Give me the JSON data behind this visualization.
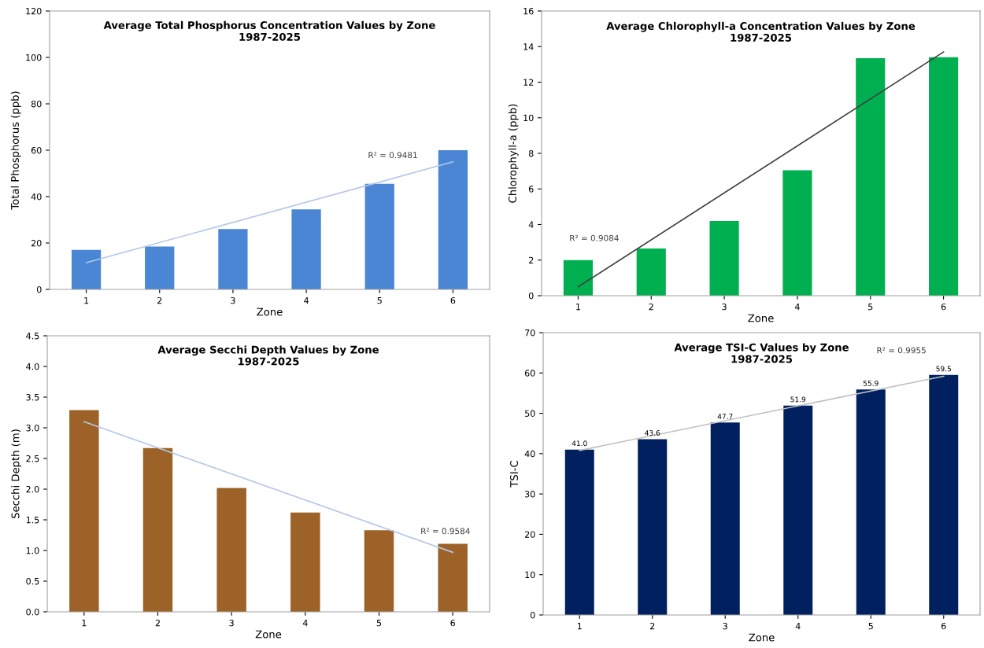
{
  "chart_data": [
    {
      "type": "bar",
      "title": "Average Total Phosphorus Concentration Values by Zone\n1987-2025",
      "xlabel": "Zone",
      "ylabel": "Total Phosphorus (ppb)",
      "categories": [
        "1",
        "2",
        "3",
        "4",
        "5",
        "6"
      ],
      "ylim": [
        0,
        120
      ],
      "yticks": [
        0,
        20,
        40,
        60,
        80,
        100,
        120
      ],
      "grid": false,
      "legend": false,
      "series": [
        {
          "color": "#4a86d4",
          "values": [
            17,
            18.5,
            26,
            34.5,
            45.5,
            60
          ]
        },
        {
          "type": "line",
          "color": "#b4c7e7",
          "x": [
            "1",
            "6"
          ],
          "values": [
            11.5,
            55
          ]
        }
      ],
      "annotations": [
        "R² = 0.9481"
      ]
    },
    {
      "type": "bar",
      "title": "Average Chlorophyll-a Concentration Values by Zone\n1987-2025",
      "xlabel": "Zone",
      "ylabel": "Chlorophyll-a (ppb)",
      "categories": [
        "1",
        "2",
        "3",
        "4",
        "5",
        "6"
      ],
      "ylim": [
        0,
        16
      ],
      "yticks": [
        0,
        2,
        4,
        6,
        8,
        10,
        12,
        14,
        16
      ],
      "grid": false,
      "legend": false,
      "series": [
        {
          "color": "#00b050",
          "values": [
            2.0,
            2.65,
            4.2,
            7.05,
            13.35,
            13.4
          ]
        },
        {
          "type": "line",
          "color": "#404040",
          "x": [
            "1",
            "6"
          ],
          "values": [
            0.5,
            13.7
          ]
        }
      ],
      "annotations": [
        "R² = 0.9084"
      ]
    },
    {
      "type": "bar",
      "title": "Average Secchi Depth Values by Zone\n1987-2025",
      "xlabel": "Zone",
      "ylabel": "Secchi Depth (m)",
      "categories": [
        "1",
        "2",
        "3",
        "4",
        "5",
        "6"
      ],
      "ylim": [
        0,
        4.5
      ],
      "yticks": [
        {
          "value": 0,
          "label": "0.0"
        },
        {
          "value": 0.5,
          "label": "0.5"
        },
        {
          "value": 1,
          "label": "1.0"
        },
        {
          "value": 1.5,
          "label": "1.5"
        },
        {
          "value": 2,
          "label": "2.0"
        },
        {
          "value": 2.5,
          "label": "2.5"
        },
        {
          "value": 3,
          "label": "3.0"
        },
        {
          "value": 3.5,
          "label": "3.5"
        },
        {
          "value": 4,
          "label": "4.0"
        },
        {
          "value": 4.5,
          "label": "4.5"
        }
      ],
      "grid": false,
      "legend": false,
      "series": [
        {
          "color": "#9c6228",
          "values": [
            3.29,
            2.67,
            2.02,
            1.62,
            1.33,
            1.11
          ]
        },
        {
          "type": "line",
          "color": "#b4c7e7",
          "x": [
            "1",
            "6"
          ],
          "values": [
            3.1,
            0.97
          ]
        }
      ],
      "annotations": [
        "R² = 0.9584"
      ]
    },
    {
      "type": "bar",
      "title": "Average TSI-C Values by Zone\n1987-2025",
      "xlabel": "Zone",
      "ylabel": "TSI-C",
      "categories": [
        "1",
        "2",
        "3",
        "4",
        "5",
        "6"
      ],
      "ylim": [
        0,
        70
      ],
      "yticks": [
        0,
        10,
        20,
        30,
        40,
        50,
        60,
        70
      ],
      "grid": false,
      "legend": false,
      "series": [
        {
          "color": "#002060",
          "values": [
            41.0,
            43.6,
            47.7,
            51.9,
            55.9,
            59.5
          ],
          "value_labels": [
            "41.0",
            "43.6",
            "47.7",
            "51.9",
            "55.9",
            "59.5"
          ]
        },
        {
          "type": "line",
          "color": "#bfbfbf",
          "x": [
            "1",
            "6"
          ],
          "values": [
            40.8,
            59.2
          ]
        }
      ],
      "annotations": [
        "R² = 0.9955"
      ]
    }
  ]
}
